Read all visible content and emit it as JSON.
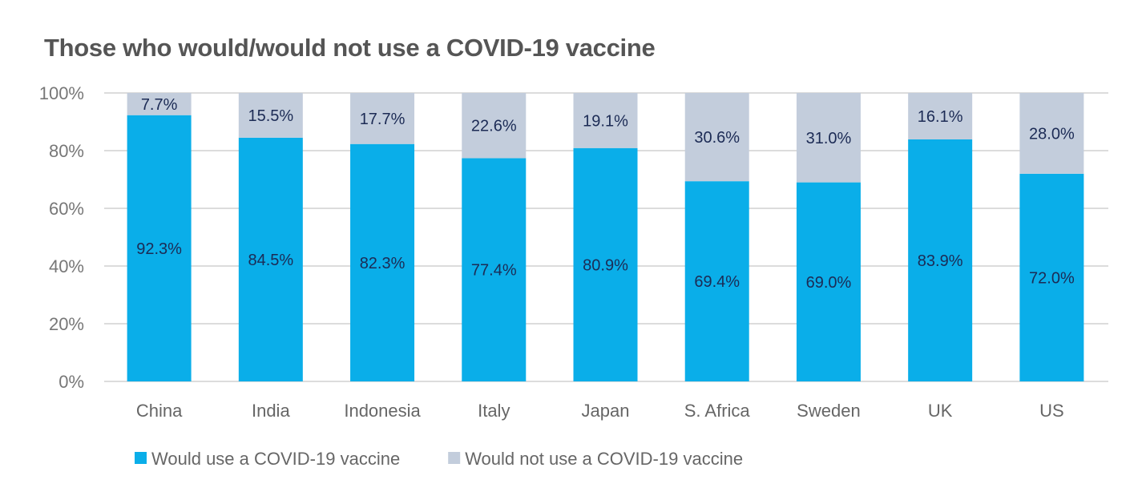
{
  "chart_data": {
    "type": "bar",
    "stacked": true,
    "title": "Those who would/would not use a COVID-19 vaccine",
    "xlabel": "",
    "ylabel": "",
    "ylim": [
      0,
      100
    ],
    "yticks": [
      "0%",
      "20%",
      "40%",
      "60%",
      "80%",
      "100%"
    ],
    "grid": true,
    "legend_position": "bottom-left",
    "categories": [
      "China",
      "India",
      "Indonesia",
      "Italy",
      "Japan",
      "S. Africa",
      "Sweden",
      "UK",
      "US"
    ],
    "series": [
      {
        "name": "Would use a COVID-19 vaccine",
        "color": "#0AAEE9",
        "values": [
          92.3,
          84.5,
          82.3,
          77.4,
          80.9,
          69.4,
          69.0,
          83.9,
          72.0
        ],
        "labels": [
          "92.3%",
          "84.5%",
          "82.3%",
          "77.4%",
          "80.9%",
          "69.4%",
          "69.0%",
          "83.9%",
          "72.0%"
        ]
      },
      {
        "name": "Would not use a COVID-19 vaccine",
        "color": "#C3CDDC",
        "values": [
          7.7,
          15.5,
          17.7,
          22.6,
          19.1,
          30.6,
          31.0,
          16.1,
          28.0
        ],
        "labels": [
          "7.7%",
          "15.5%",
          "17.7%",
          "22.6%",
          "19.1%",
          "30.6%",
          "31.0%",
          "16.1%",
          "28.0%"
        ]
      }
    ]
  }
}
